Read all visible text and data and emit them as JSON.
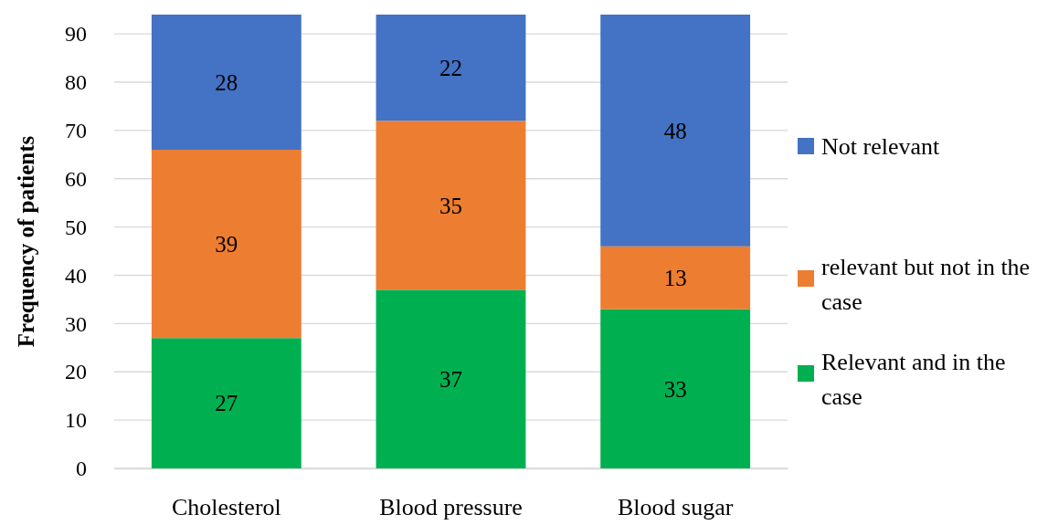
{
  "chart_data": {
    "type": "bar",
    "stacked": true,
    "ylabel": "Frequency of patients",
    "categories": [
      "Cholesterol",
      "Blood pressure",
      "Blood sugar"
    ],
    "series": [
      {
        "name": "Relevant and in the case",
        "color": "#00b050",
        "values": [
          27,
          37,
          33
        ]
      },
      {
        "name": "relevant but not in the case",
        "color": "#ed7d31",
        "values": [
          39,
          35,
          13
        ]
      },
      {
        "name": "Not relevant",
        "color": "#4472c4",
        "values": [
          28,
          22,
          48
        ]
      }
    ],
    "ylim": [
      0,
      94
    ],
    "yticks": [
      0,
      10,
      20,
      30,
      40,
      50,
      60,
      70,
      80,
      90
    ],
    "grid": "y",
    "legend": "right",
    "data_labels": true
  }
}
